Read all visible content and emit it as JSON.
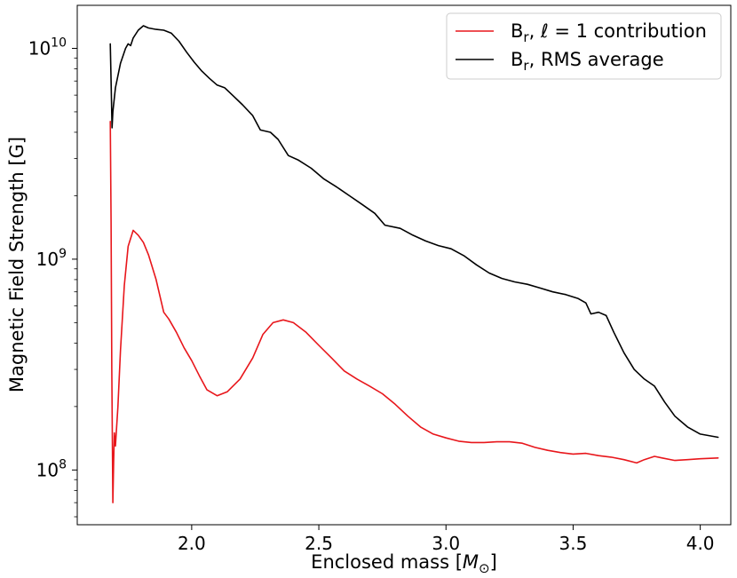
{
  "chart_data": {
    "type": "line",
    "xlabel": "Enclosed mass [",
    "xlabel_symbol": "M",
    "xlabel_subscript": "⊙",
    "xlabel_close": "]",
    "ylabel": "Magnetic Field Strength [G]",
    "xlim": [
      1.55,
      4.12
    ],
    "ylim": [
      55000000,
      16000000000
    ],
    "yscale": "log",
    "grid": false,
    "legend_position": "top-right",
    "x_ticks": [
      {
        "value": 2.0,
        "label": "2.0"
      },
      {
        "value": 2.5,
        "label": "2.5"
      },
      {
        "value": 3.0,
        "label": "3.0"
      },
      {
        "value": 3.5,
        "label": "3.5"
      },
      {
        "value": 4.0,
        "label": "4.0"
      }
    ],
    "y_ticks": [
      {
        "value": 100000000,
        "base": "10",
        "exp": "8"
      },
      {
        "value": 1000000000,
        "base": "10",
        "exp": "9"
      },
      {
        "value": 10000000000,
        "base": "10",
        "exp": "10"
      }
    ],
    "series": [
      {
        "name": "Br, ℓ = 1 contribution",
        "legend_main": "B",
        "legend_sub": "r",
        "legend_mid": ", ",
        "legend_ell": "ℓ",
        "legend_rest": " = 1 contribution",
        "color": "#e8161b",
        "points": [
          [
            1.68,
            4500000000
          ],
          [
            1.683,
            1500000000
          ],
          [
            1.686,
            300000000
          ],
          [
            1.69,
            70000000
          ],
          [
            1.693,
            110000000
          ],
          [
            1.696,
            150000000
          ],
          [
            1.7,
            130000000
          ],
          [
            1.71,
            200000000
          ],
          [
            1.72,
            370000000
          ],
          [
            1.735,
            750000000
          ],
          [
            1.75,
            1150000000
          ],
          [
            1.77,
            1370000000
          ],
          [
            1.79,
            1300000000
          ],
          [
            1.81,
            1200000000
          ],
          [
            1.83,
            1050000000
          ],
          [
            1.86,
            800000000
          ],
          [
            1.89,
            560000000
          ],
          [
            1.91,
            520000000
          ],
          [
            1.94,
            450000000
          ],
          [
            1.97,
            380000000
          ],
          [
            2.0,
            330000000
          ],
          [
            2.03,
            280000000
          ],
          [
            2.06,
            240000000
          ],
          [
            2.1,
            225000000
          ],
          [
            2.14,
            235000000
          ],
          [
            2.19,
            270000000
          ],
          [
            2.24,
            340000000
          ],
          [
            2.28,
            440000000
          ],
          [
            2.32,
            500000000
          ],
          [
            2.36,
            515000000
          ],
          [
            2.4,
            500000000
          ],
          [
            2.45,
            450000000
          ],
          [
            2.5,
            390000000
          ],
          [
            2.55,
            340000000
          ],
          [
            2.6,
            295000000
          ],
          [
            2.65,
            270000000
          ],
          [
            2.7,
            250000000
          ],
          [
            2.75,
            230000000
          ],
          [
            2.8,
            205000000
          ],
          [
            2.85,
            180000000
          ],
          [
            2.9,
            160000000
          ],
          [
            2.95,
            148000000
          ],
          [
            3.0,
            142000000
          ],
          [
            3.05,
            137000000
          ],
          [
            3.1,
            135000000
          ],
          [
            3.15,
            135000000
          ],
          [
            3.2,
            136000000
          ],
          [
            3.25,
            136000000
          ],
          [
            3.3,
            134000000
          ],
          [
            3.35,
            128000000
          ],
          [
            3.4,
            124000000
          ],
          [
            3.45,
            121000000
          ],
          [
            3.5,
            119000000
          ],
          [
            3.55,
            120000000
          ],
          [
            3.6,
            117000000
          ],
          [
            3.65,
            115000000
          ],
          [
            3.7,
            112000000
          ],
          [
            3.75,
            108000000
          ],
          [
            3.78,
            112000000
          ],
          [
            3.82,
            116000000
          ],
          [
            3.85,
            114000000
          ],
          [
            3.9,
            111000000
          ],
          [
            3.95,
            112000000
          ],
          [
            4.0,
            113000000
          ],
          [
            4.07,
            114000000
          ]
        ]
      },
      {
        "name": "Br, RMS average",
        "legend_main": "B",
        "legend_sub": "r",
        "legend_mid": ", ",
        "legend_ell": "",
        "legend_rest": "RMS average",
        "color": "#000000",
        "points": [
          [
            1.68,
            10500000000
          ],
          [
            1.683,
            7000000000
          ],
          [
            1.687,
            4200000000
          ],
          [
            1.69,
            5000000000
          ],
          [
            1.7,
            6500000000
          ],
          [
            1.72,
            8500000000
          ],
          [
            1.74,
            10000000000
          ],
          [
            1.75,
            10500000000
          ],
          [
            1.76,
            10300000000
          ],
          [
            1.77,
            11200000000
          ],
          [
            1.79,
            12200000000
          ],
          [
            1.81,
            12800000000
          ],
          [
            1.83,
            12500000000
          ],
          [
            1.86,
            12300000000
          ],
          [
            1.89,
            12200000000
          ],
          [
            1.92,
            11800000000
          ],
          [
            1.95,
            10800000000
          ],
          [
            1.98,
            9600000000
          ],
          [
            2.01,
            8600000000
          ],
          [
            2.04,
            7800000000
          ],
          [
            2.07,
            7200000000
          ],
          [
            2.1,
            6700000000
          ],
          [
            2.13,
            6500000000
          ],
          [
            2.16,
            6000000000
          ],
          [
            2.2,
            5400000000
          ],
          [
            2.24,
            4800000000
          ],
          [
            2.27,
            4100000000
          ],
          [
            2.31,
            4000000000
          ],
          [
            2.34,
            3700000000
          ],
          [
            2.38,
            3100000000
          ],
          [
            2.42,
            2950000000
          ],
          [
            2.47,
            2700000000
          ],
          [
            2.52,
            2400000000
          ],
          [
            2.57,
            2200000000
          ],
          [
            2.62,
            2000000000
          ],
          [
            2.67,
            1820000000
          ],
          [
            2.72,
            1650000000
          ],
          [
            2.76,
            1450000000
          ],
          [
            2.82,
            1400000000
          ],
          [
            2.87,
            1300000000
          ],
          [
            2.92,
            1220000000
          ],
          [
            2.97,
            1160000000
          ],
          [
            3.02,
            1120000000
          ],
          [
            3.07,
            1040000000
          ],
          [
            3.12,
            940000000
          ],
          [
            3.17,
            860000000
          ],
          [
            3.22,
            810000000
          ],
          [
            3.27,
            780000000
          ],
          [
            3.32,
            760000000
          ],
          [
            3.37,
            730000000
          ],
          [
            3.42,
            700000000
          ],
          [
            3.47,
            680000000
          ],
          [
            3.52,
            650000000
          ],
          [
            3.55,
            620000000
          ],
          [
            3.57,
            550000000
          ],
          [
            3.6,
            560000000
          ],
          [
            3.63,
            540000000
          ],
          [
            3.66,
            450000000
          ],
          [
            3.7,
            360000000
          ],
          [
            3.74,
            300000000
          ],
          [
            3.78,
            270000000
          ],
          [
            3.82,
            250000000
          ],
          [
            3.86,
            210000000
          ],
          [
            3.9,
            180000000
          ],
          [
            3.95,
            160000000
          ],
          [
            4.0,
            148000000
          ],
          [
            4.07,
            143000000
          ]
        ]
      }
    ]
  }
}
